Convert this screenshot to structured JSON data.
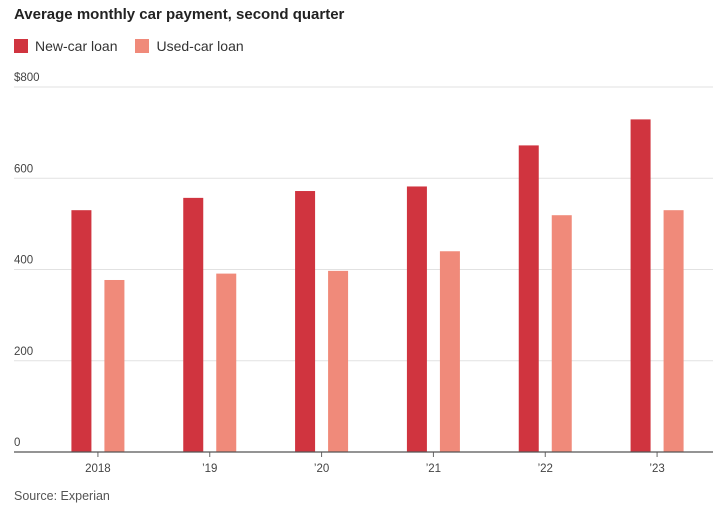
{
  "chart_data": {
    "type": "bar",
    "title": "Average monthly car payment, second quarter",
    "categories": [
      "2018",
      "’19",
      "’20",
      "’21",
      "’22",
      "’23"
    ],
    "series": [
      {
        "name": "New-car loan",
        "color": "#d0343f",
        "values": [
          530,
          557,
          572,
          582,
          672,
          729
        ]
      },
      {
        "name": "Used-car loan",
        "color": "#f08a7a",
        "values": [
          377,
          391,
          397,
          440,
          519,
          530
        ]
      }
    ],
    "ylim": [
      0,
      800
    ],
    "yticks": [
      {
        "value": 800,
        "label": "$800"
      },
      {
        "value": 600,
        "label": "600"
      },
      {
        "value": 400,
        "label": "400"
      },
      {
        "value": 200,
        "label": "200"
      },
      {
        "value": 0,
        "label": "0"
      }
    ],
    "grid": true,
    "legend_position": "top-left",
    "source": "Source: Experian"
  }
}
